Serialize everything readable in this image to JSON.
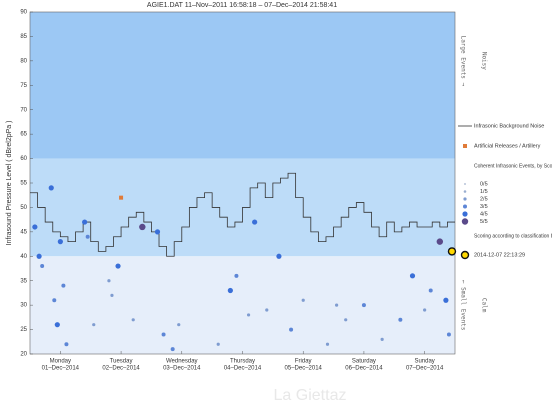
{
  "chart_data": {
    "type": "infrasound",
    "title": "AGIE1.DAT   11–Nov–2011 16:58:18   –   07–Dec–2014 21:58:41",
    "y_label": "Infrasound Pressure Level  ( dBrel2pPa )",
    "ylim": [
      20,
      90
    ],
    "yticks": [
      20,
      25,
      30,
      35,
      40,
      45,
      50,
      55,
      60,
      65,
      70,
      75,
      80,
      85,
      90
    ],
    "xlim": [
      0,
      7
    ],
    "xticks": [
      {
        "value": 0.5,
        "label": "Monday"
      },
      {
        "value": 1.5,
        "label": "Tuesday"
      },
      {
        "value": 2.5,
        "label": "Wednesday"
      },
      {
        "value": 3.5,
        "label": "Thursday"
      },
      {
        "value": 4.5,
        "label": "Friday"
      },
      {
        "value": 5.5,
        "label": "Saturday"
      },
      {
        "value": 6.5,
        "label": "Sunday"
      }
    ],
    "xtick_dates": [
      "01–Dec–2014",
      "02–Dec–2014",
      "03–Dec–2014",
      "04–Dec–2014",
      "05–Dec–2014",
      "06–Dec–2014",
      "07–Dec–2014"
    ],
    "bands": [
      {
        "from": 60,
        "to": 90,
        "color": "#9cc8f4"
      },
      {
        "from": 40,
        "to": 60,
        "color": "#bddcf8"
      },
      {
        "from": 20,
        "to": 40,
        "color": "#e6eefa"
      }
    ],
    "side_labels": [
      {
        "text": "Large Events →",
        "mid": 80
      },
      {
        "text": "Noisy",
        "mid": 80
      },
      {
        "text": "← Small Events",
        "mid": 30
      },
      {
        "text": "Calm",
        "mid": 30
      }
    ],
    "noise": {
      "name": "Infrasonic Background Noise",
      "color": "#333333",
      "x": [
        0,
        0.125,
        0.25,
        0.375,
        0.5,
        0.625,
        0.75,
        0.875,
        1,
        1.125,
        1.25,
        1.375,
        1.5,
        1.625,
        1.75,
        1.875,
        2,
        2.125,
        2.25,
        2.375,
        2.5,
        2.625,
        2.75,
        2.875,
        3,
        3.125,
        3.25,
        3.375,
        3.5,
        3.625,
        3.75,
        3.875,
        4,
        4.125,
        4.25,
        4.375,
        4.5,
        4.625,
        4.75,
        4.875,
        5,
        5.125,
        5.25,
        5.375,
        5.5,
        5.625,
        5.75,
        5.875,
        6,
        6.125,
        6.25,
        6.375,
        6.5,
        6.625,
        6.75,
        6.875,
        7
      ],
      "values": [
        53,
        50,
        47,
        45,
        44,
        43,
        45,
        47,
        43,
        41,
        42,
        44,
        46,
        48,
        49,
        47,
        45,
        42,
        40,
        43,
        46,
        50,
        52,
        53,
        50,
        48,
        46,
        47,
        50,
        54,
        55,
        52,
        55,
        56,
        57,
        52,
        48,
        45,
        43,
        44,
        46,
        48,
        50,
        51,
        49,
        46,
        44,
        47,
        45,
        46,
        47,
        46,
        46,
        47,
        46,
        47,
        47
      ]
    },
    "artillery": {
      "name": "Artificial Releases / Artillery",
      "color": "#e07b39",
      "x": [
        1.5
      ],
      "y": [
        52
      ]
    },
    "events_title": "Coherent Infrasonic Events, by Score:",
    "scores": [
      {
        "label": "0/5",
        "color": "#b8c4d8",
        "size": 1
      },
      {
        "label": "1/5",
        "color": "#9aaed0",
        "size": 1.3
      },
      {
        "label": "2/5",
        "color": "#7f9cd0",
        "size": 1.6
      },
      {
        "label": "3/5",
        "color": "#5d86d6",
        "size": 2
      },
      {
        "label": "4/5",
        "color": "#3a6fd8",
        "size": 2.6
      },
      {
        "label": "5/5",
        "color": "#5a4a8a",
        "size": 3.2
      }
    ],
    "events": {
      "x": [
        0.08,
        0.15,
        0.2,
        0.35,
        0.4,
        0.45,
        0.5,
        0.6,
        0.9,
        0.95,
        1.05,
        1.3,
        1.35,
        1.45,
        1.7,
        2.1,
        2.2,
        2.35,
        2.45,
        3.1,
        3.3,
        3.4,
        3.7,
        3.9,
        4.1,
        4.3,
        4.5,
        4.9,
        5.2,
        5.5,
        5.8,
        6.1,
        6.3,
        6.5,
        6.6,
        6.75,
        6.85,
        6.9,
        0.55,
        1.85,
        3.6,
        5.05
      ],
      "y": [
        46,
        40,
        38,
        54,
        31,
        26,
        43,
        22,
        47,
        44,
        26,
        35,
        32,
        38,
        27,
        45,
        24,
        21,
        26,
        22,
        33,
        36,
        47,
        29,
        40,
        25,
        31,
        22,
        27,
        30,
        23,
        27,
        36,
        29,
        33,
        43,
        31,
        24,
        34,
        46,
        28,
        30
      ],
      "score": [
        4,
        4,
        3,
        4,
        3,
        4,
        4,
        3,
        4,
        3,
        2,
        2,
        2,
        4,
        2,
        4,
        3,
        3,
        2,
        2,
        4,
        3,
        4,
        2,
        4,
        3,
        2,
        2,
        2,
        3,
        2,
        3,
        4,
        2,
        3,
        5,
        4,
        3,
        3,
        5,
        2,
        2
      ]
    },
    "highlight_title": "Scoring according to classification bounds",
    "highlight": {
      "x": 6.95,
      "y": 41,
      "label": "2014-12-07 22:13:29"
    },
    "watermark": "La Giettaz"
  }
}
